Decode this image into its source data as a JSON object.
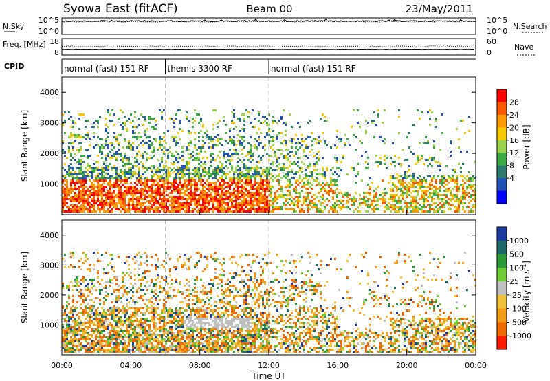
{
  "header": {
    "title": "Syowa East (fitACF)",
    "beam": "Beam 00",
    "date": "23/May/2011"
  },
  "chart_data": [
    {
      "type": "line",
      "panel": "N.Sky / N.Search",
      "left_label": "N.Sky",
      "right_label": "N.Search",
      "left_ticks": [
        "10^5",
        "10^0"
      ],
      "right_ticks": [
        "10^5",
        "10^0"
      ],
      "x_range_hours": [
        0,
        24
      ],
      "series": [
        {
          "name": "N.Sky",
          "style": "solid",
          "value_log10": 4.8
        },
        {
          "name": "N.Search",
          "style": "dotted",
          "value_log10": 4.8
        }
      ]
    },
    {
      "type": "line",
      "panel": "Freq. / Nave",
      "left_label": "Freq. [MHz]",
      "right_label": "Nave",
      "left_ticks": [
        "18",
        "8"
      ],
      "right_ticks": [
        "60",
        "0"
      ],
      "series": [
        {
          "name": "Freq.",
          "style": "solid",
          "value": 11.0
        },
        {
          "name": "Nave",
          "style": "dotted",
          "value": 34
        }
      ]
    },
    {
      "type": "table",
      "panel": "CPID",
      "label": "CPID",
      "segments": [
        {
          "start_h": 0,
          "end_h": 6,
          "name": "normal (fast) 151 RF"
        },
        {
          "start_h": 6,
          "end_h": 12,
          "name": "themis 3300 RF"
        },
        {
          "start_h": 12,
          "end_h": 24,
          "name": "normal (fast) 151 RF"
        }
      ]
    },
    {
      "type": "heatmap",
      "panel": "Power",
      "ylabel": "Slant Range [km]",
      "ylim": [
        0,
        4500
      ],
      "yticks": [
        "1000",
        "2000",
        "3000",
        "4000"
      ],
      "colorbar_label": "Power [dB]",
      "colorbar_ticks": [
        "28",
        "24",
        "20",
        "16",
        "12",
        "8",
        "4"
      ],
      "colors": [
        "#ff0000",
        "#ff5a00",
        "#ff9b00",
        "#f5c800",
        "#9ad24b",
        "#3caa46",
        "#2e7a6e",
        "#2350b4",
        "#0000ff"
      ]
    },
    {
      "type": "heatmap",
      "panel": "Velocity",
      "ylabel": "Slant Range [km]",
      "ylim": [
        0,
        4500
      ],
      "yticks": [
        "1000",
        "2000",
        "3000",
        "4000"
      ],
      "xlabel": "Time UT",
      "xticks": [
        "00:00",
        "04:00",
        "08:00",
        "12:00",
        "16:00",
        "20:00",
        "00:00"
      ],
      "colorbar_label": "Velocity [m s^-1]",
      "colorbar_ticks": [
        "1000",
        "500",
        "100",
        "25",
        "-25",
        "-100",
        "-500",
        "-1000"
      ],
      "colors": [
        "#1c3aa0",
        "#1e6a6a",
        "#2f9a3c",
        "#70cc34",
        "#c0c0c0",
        "#f0c23a",
        "#f29c18",
        "#ee6a00",
        "#ff1a00"
      ]
    }
  ]
}
